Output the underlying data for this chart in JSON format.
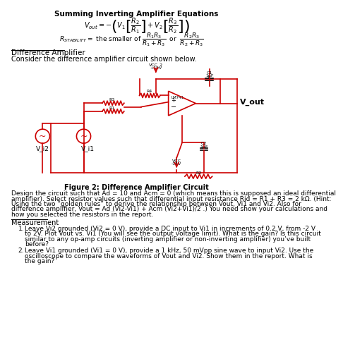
{
  "title": "Summing Inverting Amplifier Equations",
  "diff_amp_header": "Difference Amplifier",
  "diff_amp_intro": "Consider the difference amplifier circuit shown below.",
  "fig_caption": "Figure 2: Difference Amplifier Circuit",
  "measurement": "Measurement",
  "bg_color": "#ffffff",
  "text_color": "#000000",
  "circuit_color": "#cc0000",
  "design_lines": [
    "Design the circuit such that Ad = 10 and Acm = 0 (which means this is supposed an ideal differential",
    "amplifier). Select resistor values such that differential input resistance Rid = R1 + R3 = 2 kΩ. (Hint:",
    "Using the two “golden rules” to derive the relationship between Vout, Vi1 and Vi2. Also for",
    "difference amplifier, Vout = Ad (Vi2-Vi1) + Acm (Vi2+Vi1)/2 .) You need show your calculations and",
    "how you selected the resistors in the report."
  ],
  "item1_lines": [
    "Leave Vi2 grounded (Vi2 = 0 V), provide a DC input to Vi1 in increments of 0.2 V, from -2 V",
    "to 2V. Plot Vout vs. Vi1 (You will see the output voltage limit). What is the gain? Is this circuit",
    "similar to any op-amp circuits (inverting amplifier or non-inverting amplifier) you’ve built",
    "before?"
  ],
  "item2_lines": [
    "Leave Vi1 grounded (Vi1 = 0 V), provide a 1 kHz, 50 mVpp sine wave to input Vi2. Use the",
    "oscilloscope to compare the waveforms of Vout and Vi2. Show them in the report. What is",
    "the gain?"
  ]
}
